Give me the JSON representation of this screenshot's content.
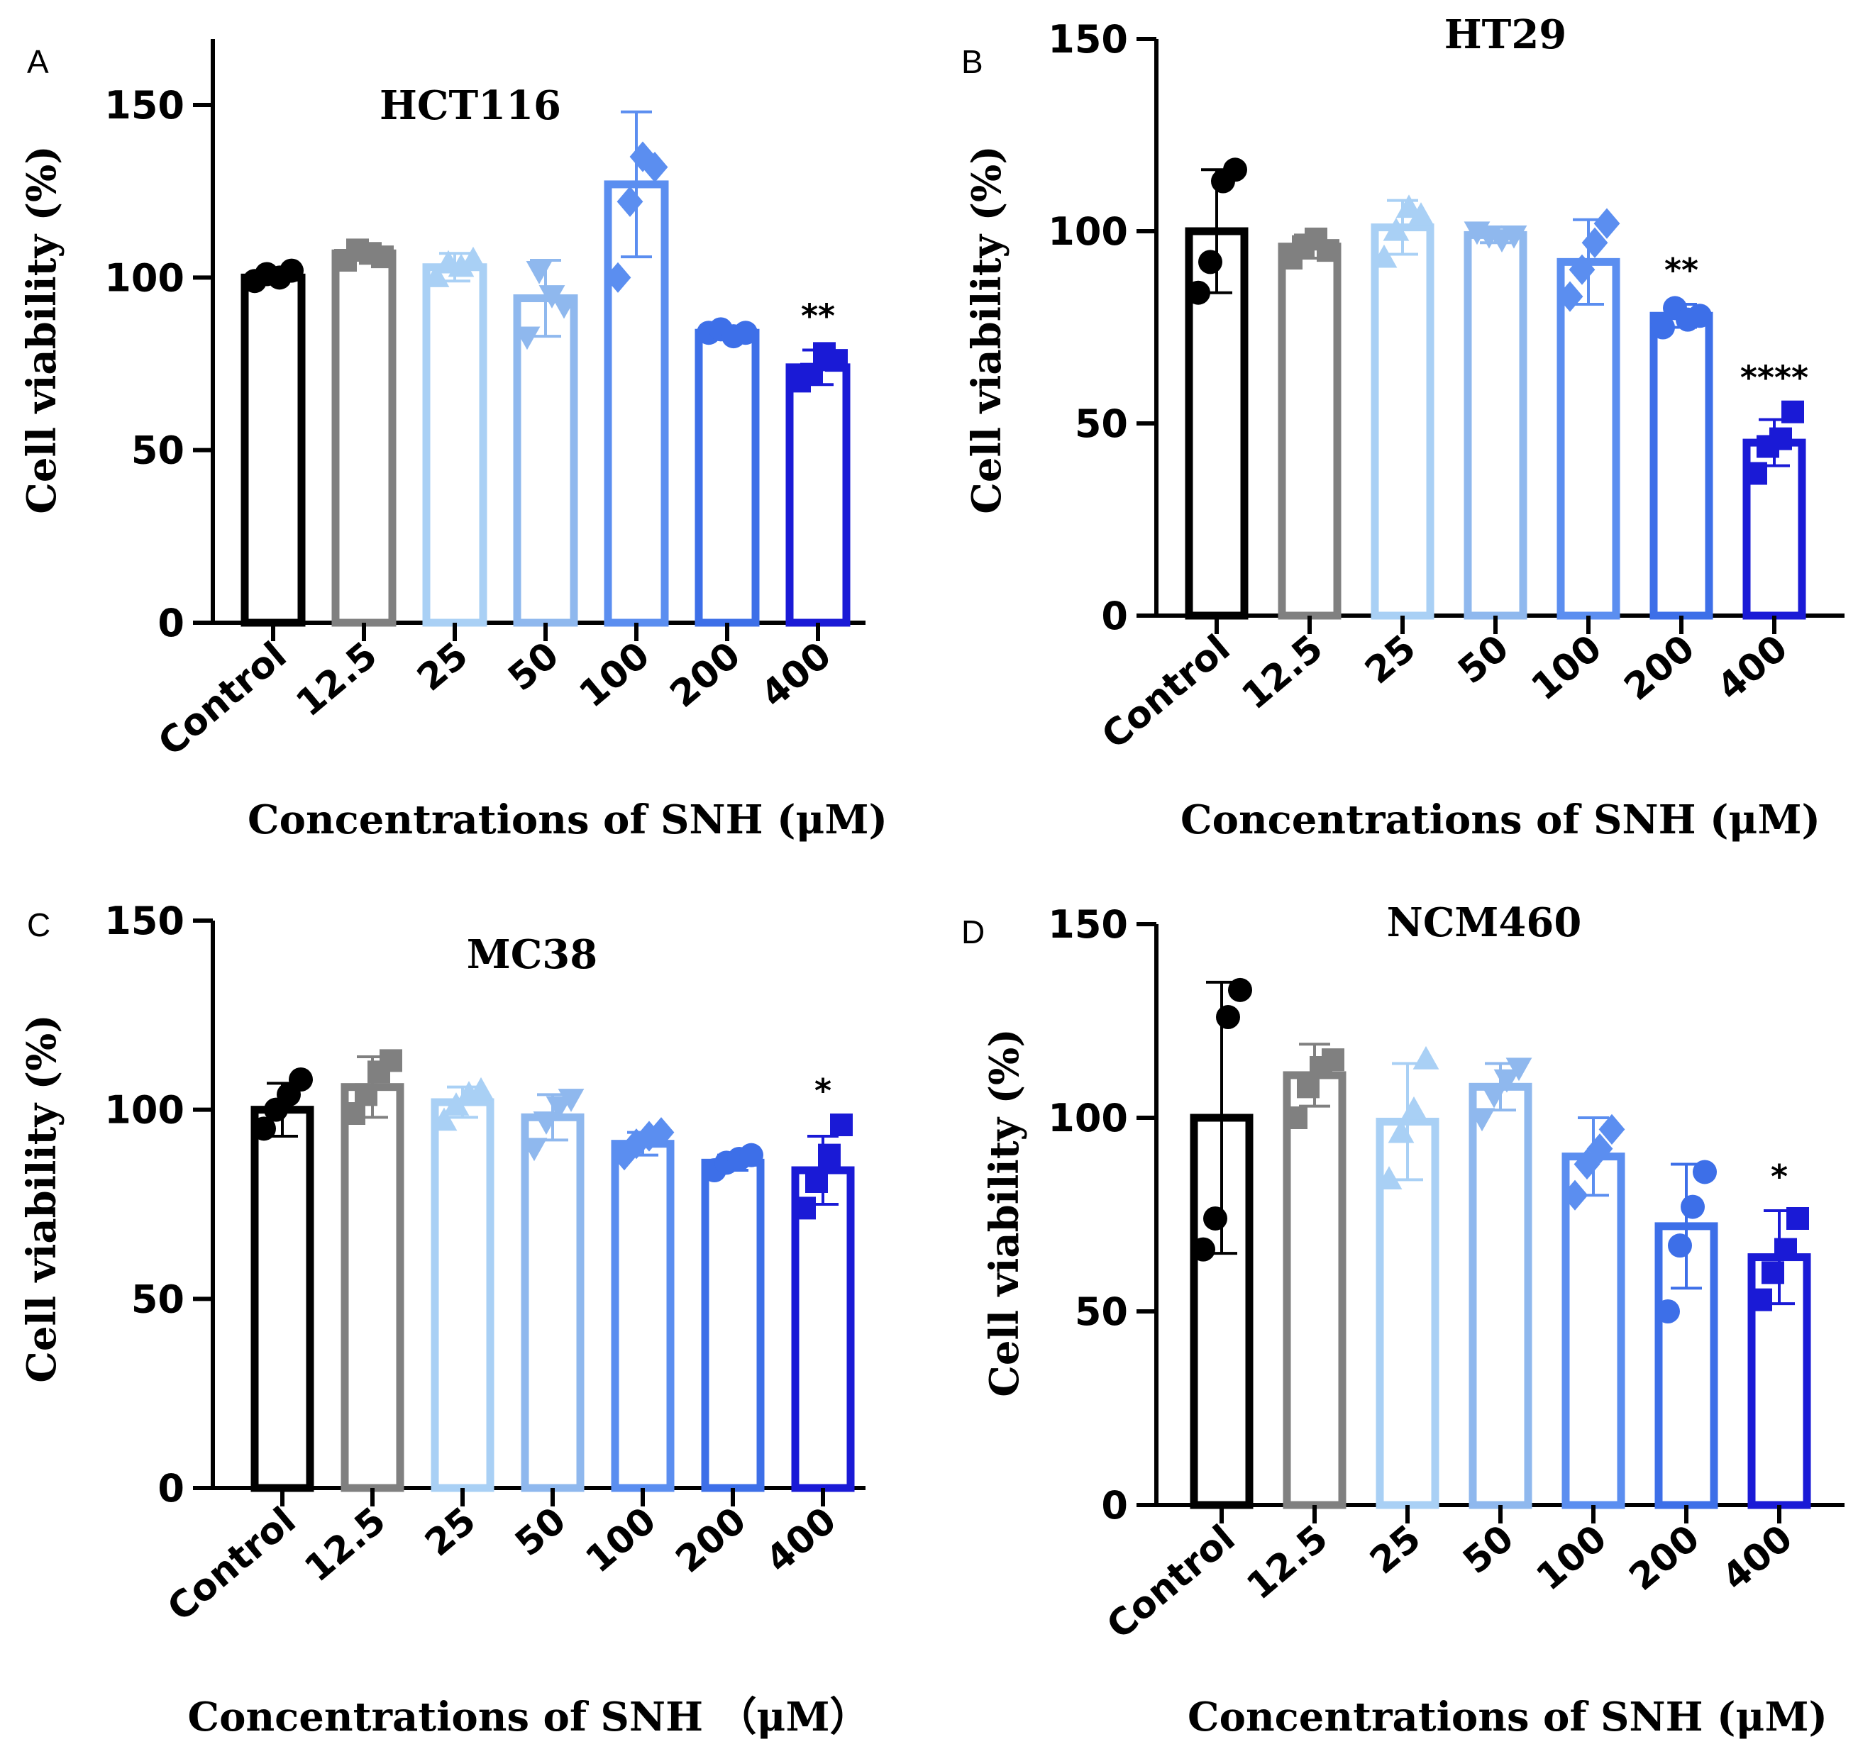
{
  "figure": {
    "colors": [
      "#000000",
      "#808080",
      "#a9d0f5",
      "#8fb8ee",
      "#5b8ef0",
      "#3d6fe8",
      "#1a1ad6"
    ]
  },
  "chart_data": [
    {
      "type": "bar",
      "panel_letter": "A",
      "title": "HCT116",
      "ylabel": "Cell viability (%)",
      "xlabel": "Concentrations of SNH (μM)",
      "categories": [
        "Control",
        "12.5",
        "25",
        "50",
        "100",
        "200",
        "400"
      ],
      "ylim": [
        0,
        170
      ],
      "yticks": [
        "0",
        "50",
        "100",
        "150"
      ],
      "values": [
        100,
        107,
        103,
        94,
        127,
        84,
        74
      ],
      "errors": [
        1.5,
        2,
        4,
        11,
        21,
        1.5,
        5
      ],
      "markers": [
        "circle",
        "square",
        "triangle-up",
        "triangle-down",
        "diamond",
        "circle",
        "square"
      ],
      "points": [
        [
          99,
          101,
          100,
          102
        ],
        [
          105,
          108,
          107,
          106
        ],
        [
          100,
          104,
          103,
          105
        ],
        [
          83,
          102,
          95,
          92
        ],
        [
          100,
          122,
          135,
          132
        ],
        [
          84,
          85,
          83,
          84
        ],
        [
          70,
          72,
          78,
          76
        ]
      ],
      "significance": [
        "",
        "",
        "",
        "",
        "",
        "",
        "**"
      ]
    },
    {
      "type": "bar",
      "panel_letter": "B",
      "title": "HT29",
      "ylabel": "Cell viability (%)",
      "xlabel": "Concentrations of SNH (μM)",
      "categories": [
        "Control",
        "12.5",
        "25",
        "50",
        "100",
        "200",
        "400"
      ],
      "ylim": [
        0,
        150
      ],
      "yticks": [
        "0",
        "50",
        "100",
        "150"
      ],
      "values": [
        100,
        96,
        101,
        99,
        92,
        78,
        45
      ],
      "errors": [
        16,
        3,
        7,
        2,
        11,
        3,
        6
      ],
      "markers": [
        "circle",
        "square",
        "triangle-up",
        "triangle-down",
        "diamond",
        "circle",
        "square"
      ],
      "points": [
        [
          84,
          92,
          113,
          116
        ],
        [
          93,
          96,
          98,
          95
        ],
        [
          93,
          100,
          106,
          104
        ],
        [
          100,
          99,
          98,
          99
        ],
        [
          83,
          90,
          97,
          102
        ],
        [
          75,
          80,
          77,
          78
        ],
        [
          37,
          44,
          46,
          53
        ]
      ],
      "significance": [
        "",
        "",
        "",
        "",
        "",
        "**",
        "****"
      ]
    },
    {
      "type": "bar",
      "panel_letter": "C",
      "title": "MC38",
      "ylabel": "Cell viability (%)",
      "xlabel": "Concentrations of SNH （μM）",
      "categories": [
        "Control",
        "12.5",
        "25",
        "50",
        "100",
        "200",
        "400"
      ],
      "ylim": [
        0,
        150
      ],
      "yticks": [
        "0",
        "50",
        "100",
        "150"
      ],
      "values": [
        100,
        106,
        102,
        98,
        91,
        86,
        84
      ],
      "errors": [
        7,
        8,
        4,
        6,
        3,
        2,
        9
      ],
      "markers": [
        "circle",
        "square",
        "triangle-up",
        "triangle-down",
        "diamond",
        "circle",
        "square"
      ],
      "points": [
        [
          95,
          100,
          104,
          108
        ],
        [
          99,
          104,
          110,
          113
        ],
        [
          97,
          101,
          104,
          105
        ],
        [
          90,
          97,
          101,
          103
        ],
        [
          88,
          91,
          93,
          94
        ],
        [
          84,
          86,
          87,
          88
        ],
        [
          74,
          81,
          88,
          96
        ]
      ],
      "significance": [
        "",
        "",
        "",
        "",
        "",
        "",
        "*"
      ]
    },
    {
      "type": "bar",
      "panel_letter": "D",
      "title": "NCM460",
      "ylabel": "Cell viability (%)",
      "xlabel": "Concentrations of SNH (μM)",
      "categories": [
        "Control",
        "12.5",
        "25",
        "50",
        "100",
        "200",
        "400"
      ],
      "ylim": [
        0,
        150
      ],
      "yticks": [
        "0",
        "50",
        "100",
        "150"
      ],
      "values": [
        100,
        111,
        99,
        108,
        90,
        72,
        64
      ],
      "errors": [
        35,
        8,
        15,
        6,
        10,
        16,
        12
      ],
      "markers": [
        "circle",
        "square",
        "triangle-up",
        "triangle-down",
        "diamond",
        "circle",
        "square"
      ],
      "points": [
        [
          66,
          74,
          126,
          133
        ],
        [
          100,
          108,
          113,
          115
        ],
        [
          84,
          96,
          102,
          115
        ],
        [
          100,
          106,
          110,
          113
        ],
        [
          80,
          88,
          92,
          97
        ],
        [
          50,
          67,
          77,
          86
        ],
        [
          53,
          60,
          66,
          74
        ]
      ],
      "significance": [
        "",
        "",
        "",
        "",
        "",
        "",
        "*"
      ]
    }
  ]
}
